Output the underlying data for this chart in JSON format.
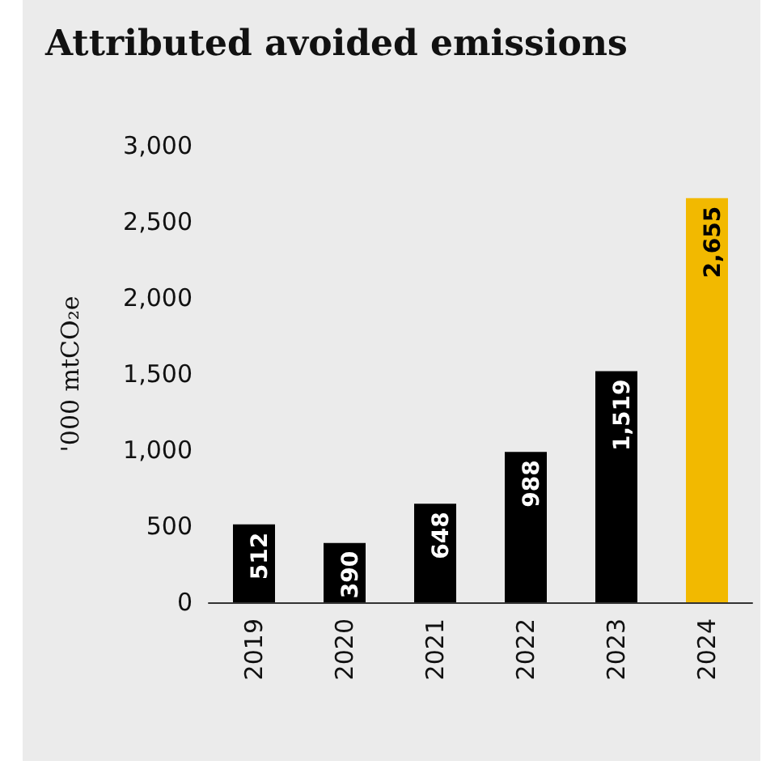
{
  "chart_data": {
    "type": "bar",
    "title": "Attributed avoided emissions",
    "ylabel": "'000 mtCO₂e",
    "categories": [
      "2019",
      "2020",
      "2021",
      "2022",
      "2023",
      "2024"
    ],
    "values": [
      512,
      390,
      648,
      988,
      1519,
      2655
    ],
    "colors": [
      "#000000",
      "#000000",
      "#000000",
      "#000000",
      "#000000",
      "#f2b900"
    ],
    "value_labels": [
      "512",
      "390",
      "648",
      "988",
      "1,519",
      "2,655"
    ],
    "ylim": [
      0,
      3000
    ],
    "yticks": [
      0,
      500,
      {
        "value": 1000,
        "label": "1,000"
      },
      {
        "value": 1500,
        "label": "1,500"
      },
      {
        "value": 2000,
        "label": "2,000"
      },
      {
        "value": 2500,
        "label": "2,500"
      },
      {
        "value": 3000,
        "label": "3,000"
      }
    ],
    "grid": false
  }
}
